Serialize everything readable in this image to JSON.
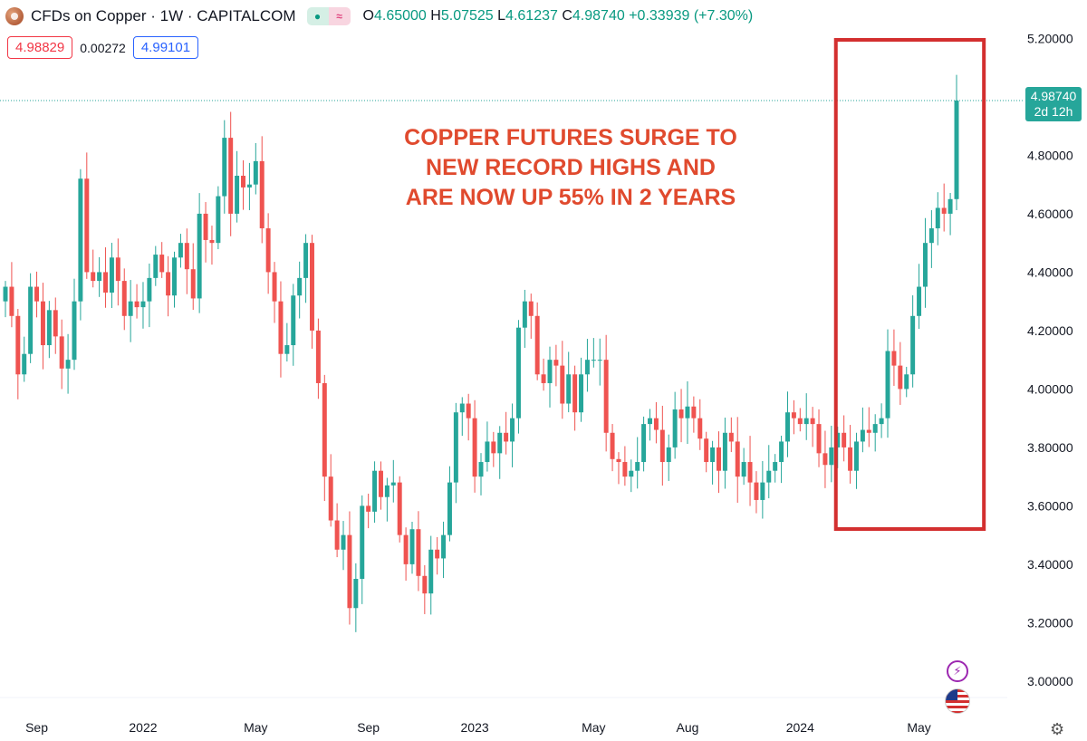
{
  "header": {
    "title": "CFDs on Copper · 1W · CAPITALCOM",
    "ohlc": [
      {
        "key": "O",
        "value": "4.65000"
      },
      {
        "key": "H",
        "value": "5.07525"
      },
      {
        "key": "L",
        "value": "4.61237"
      },
      {
        "key": "C",
        "value": "4.98740"
      }
    ],
    "change": "+0.33939 (+7.30%)",
    "pill_icons": [
      "dot-icon",
      "wave-icon"
    ],
    "pill_glyphs": {
      "dot": "●",
      "wave": "≈"
    }
  },
  "trade": {
    "sell": "4.98829",
    "spread": "0.00272",
    "buy": "4.99101"
  },
  "annotation": [
    "COPPER FUTURES SURGE TO",
    "NEW RECORD HIGHS AND",
    "ARE NOW UP 55% IN 2 YEARS"
  ],
  "last_price": {
    "value": "4.98740",
    "countdown": "2d 12h"
  },
  "icons": {
    "bolt": "⚡",
    "gear": "⚙"
  },
  "colors": {
    "up": "#26a69a",
    "down": "#ef5350",
    "highlight": "#d32f2f",
    "annotation": "#e04a2e",
    "badge": "#26a69a"
  },
  "chart_data": {
    "type": "candlestick",
    "title": "CFDs on Copper · 1W · CAPITALCOM",
    "ylim": [
      2.95,
      5.22
    ],
    "y_ticks": [
      "5.20000",
      "4.80000",
      "4.60000",
      "4.40000",
      "4.20000",
      "4.00000",
      "3.80000",
      "3.60000",
      "3.40000",
      "3.20000",
      "3.00000"
    ],
    "x_labels": [
      "Sep",
      "2022",
      "May",
      "Sep",
      "2023",
      "May",
      "Aug",
      "2024",
      "May"
    ],
    "x_label_weeks": [
      5,
      22,
      40,
      58,
      75,
      94,
      109,
      127,
      146
    ],
    "highlight_weeks": [
      133,
      150
    ],
    "closes": [
      4.35,
      4.25,
      4.05,
      4.12,
      4.35,
      4.3,
      4.15,
      4.27,
      4.18,
      4.07,
      4.1,
      4.3,
      4.72,
      4.4,
      4.37,
      4.4,
      4.33,
      4.45,
      4.37,
      4.25,
      4.3,
      4.28,
      4.3,
      4.38,
      4.46,
      4.4,
      4.32,
      4.45,
      4.5,
      4.41,
      4.31,
      4.6,
      4.51,
      4.5,
      4.66,
      4.86,
      4.6,
      4.73,
      4.69,
      4.7,
      4.78,
      4.55,
      4.4,
      4.3,
      4.12,
      4.15,
      4.32,
      4.38,
      4.5,
      4.2,
      4.02,
      3.7,
      3.55,
      3.45,
      3.5,
      3.25,
      3.35,
      3.6,
      3.58,
      3.72,
      3.63,
      3.67,
      3.68,
      3.5,
      3.4,
      3.52,
      3.36,
      3.3,
      3.45,
      3.42,
      3.5,
      3.68,
      3.92,
      3.95,
      3.9,
      3.7,
      3.75,
      3.82,
      3.78,
      3.85,
      3.82,
      3.9,
      4.21,
      4.3,
      4.25,
      4.05,
      4.02,
      4.1,
      4.08,
      3.95,
      4.05,
      3.92,
      4.05,
      4.1,
      4.1,
      4.1,
      3.85,
      3.76,
      3.75,
      3.7,
      3.72,
      3.75,
      3.88,
      3.9,
      3.86,
      3.75,
      3.8,
      3.93,
      3.9,
      3.94,
      3.9,
      3.83,
      3.75,
      3.8,
      3.72,
      3.85,
      3.82,
      3.7,
      3.75,
      3.68,
      3.62,
      3.68,
      3.72,
      3.75,
      3.82,
      3.92,
      3.9,
      3.88,
      3.9,
      3.88,
      3.78,
      3.74,
      3.8,
      3.85,
      3.8,
      3.72,
      3.82,
      3.86,
      3.85,
      3.88,
      3.9,
      4.13,
      4.08,
      4.0,
      4.05,
      4.25,
      4.35,
      4.5,
      4.55,
      4.62,
      4.6,
      4.65,
      4.9874
    ]
  }
}
